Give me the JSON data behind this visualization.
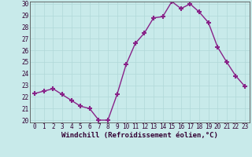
{
  "x": [
    0,
    1,
    2,
    3,
    4,
    5,
    6,
    7,
    8,
    9,
    10,
    11,
    12,
    13,
    14,
    15,
    16,
    17,
    18,
    19,
    20,
    21,
    22,
    23
  ],
  "y": [
    22.3,
    22.5,
    22.7,
    22.2,
    21.7,
    21.2,
    21.0,
    20.0,
    20.0,
    22.2,
    24.8,
    26.6,
    27.5,
    28.8,
    28.9,
    30.2,
    29.6,
    30.0,
    29.3,
    28.4,
    26.3,
    25.0,
    23.8,
    22.9
  ],
  "line_color": "#882288",
  "marker": "+",
  "marker_size": 5,
  "marker_lw": 1.5,
  "bg_color": "#c8eaea",
  "grid_color": "#b0d8d8",
  "xlabel": "Windchill (Refroidissement éolien,°C)",
  "ylim": [
    20,
    30
  ],
  "xlim": [
    -0.5,
    23.5
  ],
  "yticks": [
    20,
    21,
    22,
    23,
    24,
    25,
    26,
    27,
    28,
    29,
    30
  ],
  "xticks": [
    0,
    1,
    2,
    3,
    4,
    5,
    6,
    7,
    8,
    9,
    10,
    11,
    12,
    13,
    14,
    15,
    16,
    17,
    18,
    19,
    20,
    21,
    22,
    23
  ],
  "xlabel_fontsize": 6.5,
  "tick_fontsize": 5.5,
  "line_width": 1.0
}
